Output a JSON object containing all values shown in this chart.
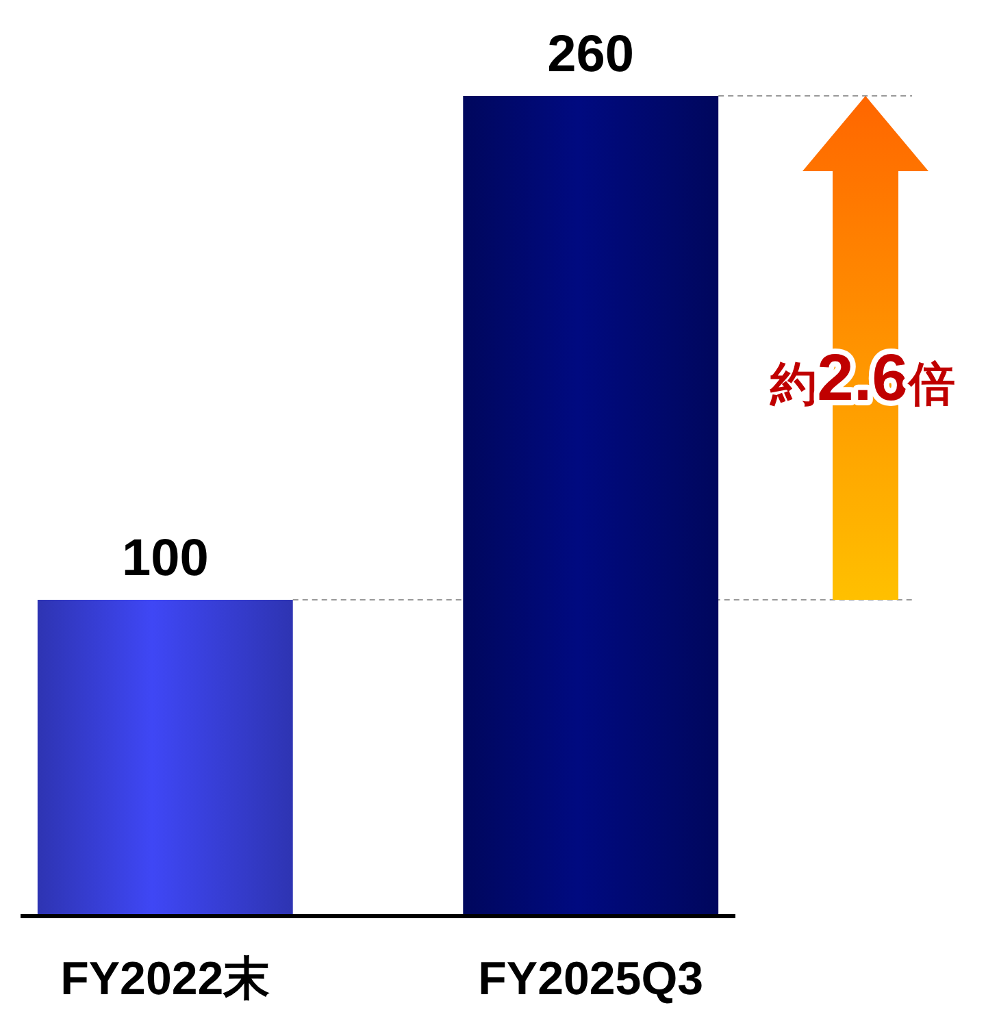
{
  "chart_data": {
    "type": "bar",
    "categories": [
      "FY2022末",
      "FY2025Q3"
    ],
    "values": [
      100,
      260
    ],
    "colors": [
      "#3f47f5",
      "#000a80"
    ],
    "data_labels": true,
    "ref_lines": [
      {
        "axis": "y",
        "value": 100,
        "color": "#999999",
        "line_style": "dashed"
      },
      {
        "axis": "y",
        "value": 260,
        "color": "#999999",
        "line_style": "dashed"
      }
    ],
    "annotations": [
      "約2.6倍"
    ]
  }
}
